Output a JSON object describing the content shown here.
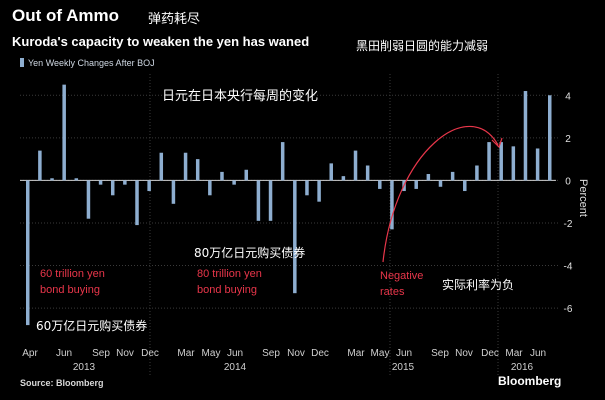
{
  "header": {
    "title": "Out of Ammo",
    "title_cn": "弹药耗尽",
    "subtitle": "Kuroda's capacity to weaken the yen has waned",
    "subtitle_cn": "黑田削弱日圆的能力减弱"
  },
  "footer": {
    "source": "Source: Bloomberg",
    "brand": "Bloomberg"
  },
  "chart_data": {
    "type": "bar",
    "legend": [
      "Yen Weekly Changes After BOJ"
    ],
    "legend_placement": "top-left",
    "chart_label_cn": "日元在日本央行每周的变化",
    "ylabel": "Percent",
    "ylim": [
      -7.5,
      5
    ],
    "yticks": [
      4,
      2,
      0,
      -2,
      -4,
      -6
    ],
    "grid": true,
    "x_tick_labels": [
      "Apr",
      "Jun",
      "Sep",
      "Nov",
      "Dec",
      "Mar",
      "May",
      "Jun",
      "Sep",
      "Nov",
      "Dec",
      "Mar",
      "May",
      "Jun",
      "Sep",
      "Nov",
      "Dec",
      "Mar",
      "Jun"
    ],
    "year_labels": [
      "2013",
      "2014",
      "2015",
      "2016"
    ],
    "annotations": [
      {
        "text_en": "60 trillion yen bond buying",
        "line1": "60 trillion yen",
        "line2": "bond buying",
        "text_cn": "60万亿日元购买债券"
      },
      {
        "text_en": "80 trillion yen bond buying",
        "line1": "80 trillion yen",
        "line2": "bond buying",
        "text_cn": "80万亿日元购买债券"
      },
      {
        "text_en": "Negative rates",
        "line1": "Negative",
        "line2": "rates",
        "text_cn": "实际利率为负"
      }
    ],
    "accent_color": "#e8364a",
    "bar_color": "#8eaed0",
    "series": [
      {
        "name": "Yen Weekly Changes After BOJ",
        "values": [
          -6.8,
          1.4,
          0.1,
          4.5,
          0.1,
          -1.8,
          -0.2,
          -0.7,
          -0.2,
          -2.1,
          -0.5,
          1.3,
          -1.1,
          1.3,
          1.0,
          -0.7,
          0.4,
          -0.2,
          0.5,
          -1.9,
          -1.9,
          1.8,
          -5.3,
          -0.7,
          -1.0,
          0.8,
          0.2,
          1.4,
          0.7,
          -0.4,
          -2.3,
          -0.5,
          -0.4,
          0.3,
          -0.3,
          0.4,
          -0.5,
          0.7,
          1.8,
          1.8,
          1.6,
          4.2,
          1.5,
          4.0
        ]
      }
    ]
  }
}
